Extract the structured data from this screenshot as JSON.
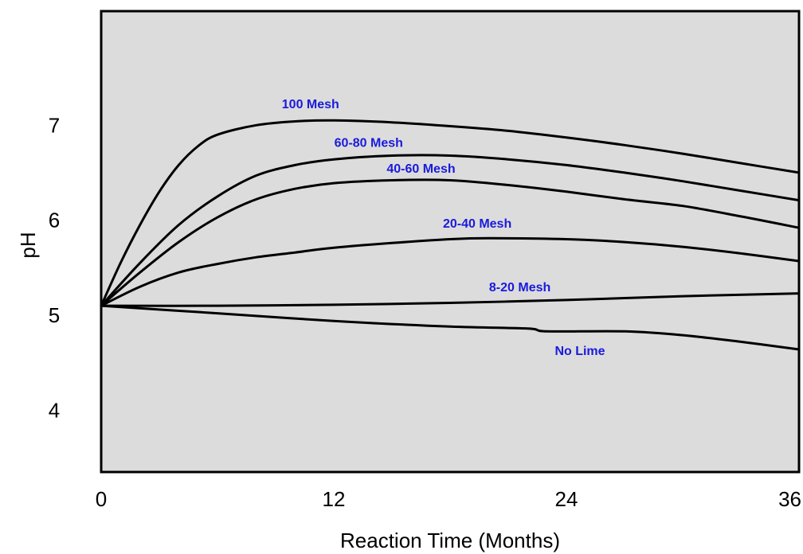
{
  "chart_data": {
    "type": "line",
    "title": "",
    "xlabel": "Reaction Time  (Months)",
    "ylabel": "pH",
    "xlim": [
      0,
      36
    ],
    "ylim": [
      3.35,
      8.2
    ],
    "xticks": [
      "0",
      "12",
      "24",
      "36"
    ],
    "yticks": [
      "4",
      "5",
      "6",
      "7"
    ],
    "grid": false,
    "colors": {
      "plot_background": "#dcdcdc",
      "frame": "#000000",
      "lines": "#000000",
      "series_labels": "#1a1adc"
    },
    "series": [
      {
        "name": "100 Mesh",
        "x": [
          0,
          1,
          2,
          3,
          4,
          5,
          6,
          8,
          10,
          12,
          15,
          18,
          21,
          24,
          27,
          30,
          33,
          36
        ],
        "y": [
          5.1,
          5.55,
          5.95,
          6.3,
          6.58,
          6.78,
          6.9,
          7.0,
          7.04,
          7.05,
          7.03,
          6.99,
          6.94,
          6.87,
          6.79,
          6.7,
          6.6,
          6.5
        ]
      },
      {
        "name": "60-80 Mesh",
        "x": [
          0,
          2,
          4,
          6,
          8,
          10,
          12,
          15,
          18,
          21,
          24,
          27,
          30,
          33,
          36
        ],
        "y": [
          5.1,
          5.55,
          5.95,
          6.25,
          6.47,
          6.58,
          6.64,
          6.68,
          6.68,
          6.64,
          6.58,
          6.5,
          6.41,
          6.31,
          6.21
        ]
      },
      {
        "name": "40-60 Mesh",
        "x": [
          0,
          2,
          4,
          6,
          8,
          10,
          12,
          15,
          18,
          21,
          24,
          27,
          30,
          33,
          36
        ],
        "y": [
          5.1,
          5.45,
          5.77,
          6.03,
          6.22,
          6.33,
          6.39,
          6.42,
          6.42,
          6.37,
          6.3,
          6.22,
          6.15,
          6.04,
          5.92
        ]
      },
      {
        "name": "20-40 Mesh",
        "x": [
          0,
          2,
          4,
          6,
          8,
          10,
          12,
          15,
          18,
          20,
          24,
          27,
          30,
          33,
          36
        ],
        "y": [
          5.1,
          5.3,
          5.45,
          5.54,
          5.61,
          5.66,
          5.71,
          5.76,
          5.8,
          5.81,
          5.8,
          5.77,
          5.72,
          5.65,
          5.57
        ]
      },
      {
        "name": "8-20 Mesh",
        "x": [
          0,
          6,
          12,
          18,
          24,
          30,
          36
        ],
        "y": [
          5.1,
          5.1,
          5.11,
          5.13,
          5.16,
          5.2,
          5.23
        ]
      },
      {
        "name": "No Lime",
        "x": [
          0,
          6,
          12,
          18,
          22,
          23,
          27,
          30,
          33,
          36
        ],
        "y": [
          5.1,
          5.02,
          4.94,
          4.88,
          4.86,
          4.83,
          4.83,
          4.79,
          4.72,
          4.64
        ]
      }
    ],
    "annotations": [
      {
        "text": "100 Mesh",
        "x": 10.8,
        "y": 7.18
      },
      {
        "text": "60-80 Mesh",
        "x": 13.8,
        "y": 6.77
      },
      {
        "text": "40-60 Mesh",
        "x": 16.5,
        "y": 6.5
      },
      {
        "text": "20-40 Mesh",
        "x": 19.4,
        "y": 5.92
      },
      {
        "text": "8-20 Mesh",
        "x": 21.6,
        "y": 5.25
      },
      {
        "text": "No Lime",
        "x": 24.7,
        "y": 4.58
      }
    ]
  }
}
